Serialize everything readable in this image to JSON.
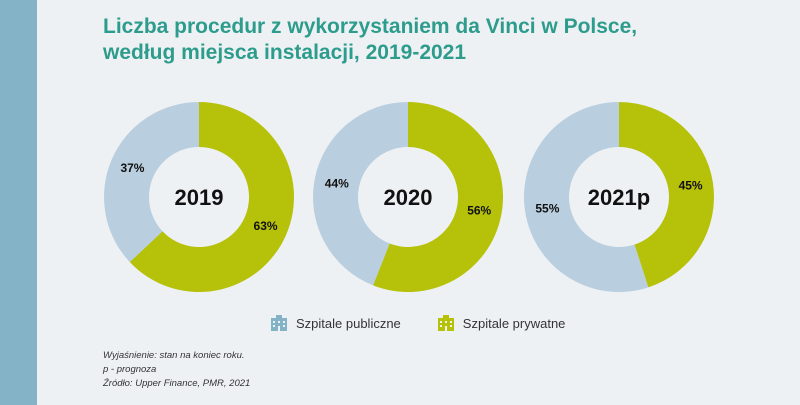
{
  "title": {
    "line1": "Liczba procedur z wykorzystaniem da Vinci w Polsce,",
    "line2": "według miejsca instalacji, 2019-2021"
  },
  "colors": {
    "public": "#b9cede",
    "private": "#b6c10a",
    "accent_bar": "#84b3c7",
    "title": "#2d9c8c"
  },
  "chart_data": [
    {
      "type": "pie",
      "center_label": "2019",
      "series": [
        {
          "name": "Szpitale publiczne",
          "value": 37,
          "label": "37%"
        },
        {
          "name": "Szpitale prywatne",
          "value": 63,
          "label": "63%"
        }
      ]
    },
    {
      "type": "pie",
      "center_label": "2020",
      "series": [
        {
          "name": "Szpitale publiczne",
          "value": 44,
          "label": "44%"
        },
        {
          "name": "Szpitale prywatne",
          "value": 56,
          "label": "56%"
        }
      ]
    },
    {
      "type": "pie",
      "center_label": "2021p",
      "series": [
        {
          "name": "Szpitale publiczne",
          "value": 55,
          "label": "55%"
        },
        {
          "name": "Szpitale prywatne",
          "value": 45,
          "label": "45%"
        }
      ]
    }
  ],
  "legend": {
    "public_label": "Szpitale publiczne",
    "private_label": "Szpitale prywatne",
    "public_icon": "building-icon",
    "private_icon": "building-icon"
  },
  "notes": {
    "line1": "Wyjaśnienie: stan na koniec roku.",
    "line2": "p - prognoza",
    "line3": "Źródło: Upper Finance, PMR, 2021"
  }
}
